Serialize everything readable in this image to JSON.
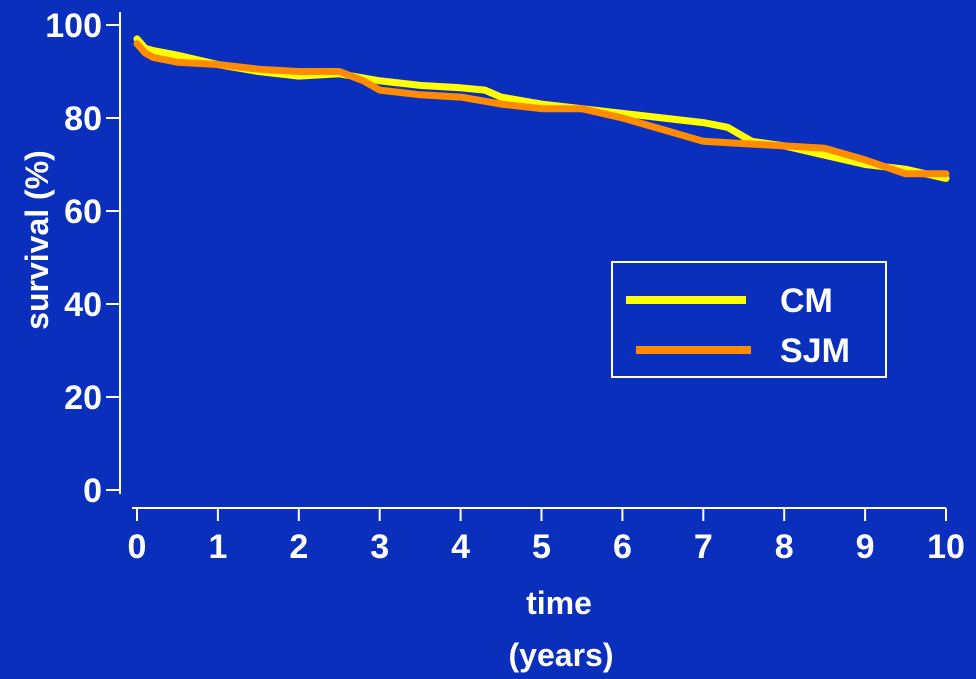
{
  "chart_data": {
    "type": "line",
    "xlabel": [
      "time",
      "(years)"
    ],
    "ylabel": "survival (%)",
    "xlim": [
      0,
      10
    ],
    "ylim": [
      0,
      100
    ],
    "x_ticks": [
      "0",
      "1",
      "2",
      "3",
      "4",
      "5",
      "6",
      "7",
      "8",
      "9",
      "10"
    ],
    "y_ticks": [
      "0",
      "20",
      "40",
      "60",
      "80",
      "100"
    ],
    "grid": false,
    "legend_position": "center-right",
    "series": [
      {
        "name": "CM",
        "color": "#ffff00",
        "x": [
          0,
          0.1,
          0.2,
          0.5,
          1,
          1.5,
          2,
          2.5,
          3,
          3.5,
          4,
          4.3,
          4.5,
          5,
          5.5,
          6,
          6.5,
          7,
          7.3,
          7.6,
          8,
          8.5,
          9,
          9.5,
          10
        ],
        "y": [
          97,
          95,
          94.5,
          93.5,
          91.5,
          90,
          89,
          89.5,
          88,
          87,
          86.5,
          86,
          84.5,
          83,
          82,
          81,
          80,
          79,
          78,
          75,
          74,
          72,
          70,
          69,
          67
        ]
      },
      {
        "name": "SJM",
        "color": "#ff8c00",
        "x": [
          0,
          0.1,
          0.2,
          0.5,
          1,
          1.5,
          2,
          2.5,
          2.8,
          3,
          3.5,
          4,
          4.5,
          5,
          5.5,
          6,
          6.5,
          7,
          7.5,
          8,
          8.5,
          9,
          9.5,
          10
        ],
        "y": [
          96,
          94,
          93,
          92,
          91.5,
          90.5,
          90,
          90,
          88,
          86,
          85,
          84.5,
          83,
          82,
          82,
          80,
          77.5,
          75,
          74.5,
          74,
          73.5,
          71,
          68,
          68
        ]
      }
    ]
  }
}
